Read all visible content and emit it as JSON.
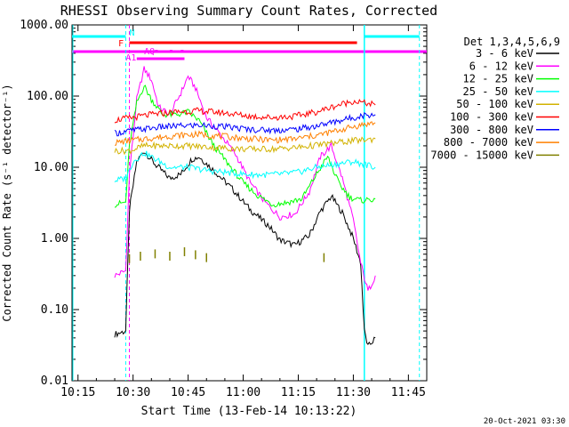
{
  "chart_data": {
    "type": "line",
    "title": "RHESSI Observing Summary Count Rates, Corrected",
    "xlabel": "Start Time (13-Feb-14 10:13:22)",
    "ylabel": "Corrected Count Rate (s⁻¹ detector⁻¹)",
    "x_ticks": [
      "10:15",
      "10:30",
      "10:45",
      "11:00",
      "11:15",
      "11:30",
      "11:45"
    ],
    "y_ticks": [
      "1000.00",
      "100.00",
      "10.00",
      "1.00",
      "0.10",
      "0.01"
    ],
    "y_scale": "log",
    "xlim": [
      "10:13:22",
      "11:50:00"
    ],
    "ylim": [
      0.01,
      1000
    ],
    "legend_title": "Det 1,3,4,5,6,9",
    "legend_position": "outside-right",
    "footer": "20-Oct-2021 03:30",
    "flags": {
      "N_label": "N",
      "F_label": "F",
      "AQ_label": "AQ",
      "A1_label": "A1"
    },
    "series": [
      {
        "name": "3 - 6 keV",
        "color": "#000000",
        "points": [
          [
            "10:25",
            0.045
          ],
          [
            "10:28",
            0.05
          ],
          [
            "10:29",
            2.5
          ],
          [
            "10:31",
            12
          ],
          [
            "10:33",
            17
          ],
          [
            "10:36",
            11
          ],
          [
            "10:40",
            7
          ],
          [
            "10:43",
            8
          ],
          [
            "10:46",
            13
          ],
          [
            "10:48",
            14
          ],
          [
            "10:52",
            9
          ],
          [
            "10:57",
            5
          ],
          [
            "11:02",
            2.5
          ],
          [
            "11:07",
            1.5
          ],
          [
            "11:10",
            0.95
          ],
          [
            "11:14",
            0.8
          ],
          [
            "11:18",
            1.1
          ],
          [
            "11:21",
            2.4
          ],
          [
            "11:24",
            3.9
          ],
          [
            "11:27",
            2.3
          ],
          [
            "11:30",
            1.0
          ],
          [
            "11:32",
            0.45
          ],
          [
            "11:33",
            0.05
          ],
          [
            "11:34",
            0.03
          ],
          [
            "11:36",
            0.04
          ]
        ]
      },
      {
        "name": "6 - 12 keV",
        "color": "#ff00ff",
        "points": [
          [
            "10:25",
            0.3
          ],
          [
            "10:28",
            0.35
          ],
          [
            "10:29",
            8
          ],
          [
            "10:31",
            90
          ],
          [
            "10:33",
            240
          ],
          [
            "10:35",
            170
          ],
          [
            "10:37",
            70
          ],
          [
            "10:40",
            55
          ],
          [
            "10:43",
            110
          ],
          [
            "10:45",
            190
          ],
          [
            "10:47",
            130
          ],
          [
            "10:50",
            50
          ],
          [
            "10:54",
            28
          ],
          [
            "10:58",
            15
          ],
          [
            "11:02",
            6
          ],
          [
            "11:06",
            3.2
          ],
          [
            "11:10",
            2.0
          ],
          [
            "11:14",
            2.2
          ],
          [
            "11:18",
            4.5
          ],
          [
            "11:21",
            14
          ],
          [
            "11:24",
            20
          ],
          [
            "11:27",
            7
          ],
          [
            "11:30",
            1.8
          ],
          [
            "11:32",
            0.45
          ],
          [
            "11:34",
            0.18
          ],
          [
            "11:36",
            0.3
          ]
        ]
      },
      {
        "name": "12 - 25 keV",
        "color": "#00ff00",
        "points": [
          [
            "10:25",
            3
          ],
          [
            "10:28",
            3.2
          ],
          [
            "10:29",
            20
          ],
          [
            "10:31",
            80
          ],
          [
            "10:33",
            140
          ],
          [
            "10:35",
            90
          ],
          [
            "10:38",
            55
          ],
          [
            "10:42",
            55
          ],
          [
            "10:45",
            60
          ],
          [
            "10:48",
            45
          ],
          [
            "10:52",
            20
          ],
          [
            "10:56",
            11
          ],
          [
            "11:00",
            6
          ],
          [
            "11:04",
            4
          ],
          [
            "11:08",
            3
          ],
          [
            "11:12",
            3.2
          ],
          [
            "11:16",
            3.6
          ],
          [
            "11:20",
            8
          ],
          [
            "11:23",
            14
          ],
          [
            "11:26",
            6
          ],
          [
            "11:29",
            3.8
          ],
          [
            "11:32",
            3.4
          ],
          [
            "11:36",
            3.6
          ]
        ]
      },
      {
        "name": "25 - 50 keV",
        "color": "#00ffff",
        "points": [
          [
            "10:25",
            6.5
          ],
          [
            "10:28",
            7
          ],
          [
            "10:30",
            12
          ],
          [
            "10:33",
            16
          ],
          [
            "10:36",
            13
          ],
          [
            "10:40",
            10
          ],
          [
            "10:45",
            10
          ],
          [
            "10:50",
            9
          ],
          [
            "10:55",
            8.5
          ],
          [
            "11:00",
            8
          ],
          [
            "11:05",
            7.8
          ],
          [
            "11:10",
            8
          ],
          [
            "11:15",
            8.5
          ],
          [
            "11:20",
            10
          ],
          [
            "11:25",
            11
          ],
          [
            "11:30",
            12
          ],
          [
            "11:33",
            11
          ],
          [
            "11:36",
            10
          ]
        ]
      },
      {
        "name": "50 - 100 keV",
        "color": "#d2b200",
        "points": [
          [
            "10:25",
            17
          ],
          [
            "10:29",
            17
          ],
          [
            "10:33",
            20
          ],
          [
            "10:38",
            20
          ],
          [
            "10:45",
            20
          ],
          [
            "10:52",
            19
          ],
          [
            "11:00",
            18
          ],
          [
            "11:08",
            18
          ],
          [
            "11:15",
            19
          ],
          [
            "11:22",
            21
          ],
          [
            "11:28",
            23
          ],
          [
            "11:32",
            24
          ],
          [
            "11:36",
            25
          ]
        ]
      },
      {
        "name": "100 - 300 keV",
        "color": "#ff0000",
        "points": [
          [
            "10:25",
            46
          ],
          [
            "10:30",
            50
          ],
          [
            "10:35",
            55
          ],
          [
            "10:42",
            60
          ],
          [
            "10:48",
            62
          ],
          [
            "10:55",
            58
          ],
          [
            "11:02",
            52
          ],
          [
            "11:08",
            50
          ],
          [
            "11:14",
            52
          ],
          [
            "11:20",
            60
          ],
          [
            "11:26",
            75
          ],
          [
            "11:30",
            85
          ],
          [
            "11:33",
            80
          ],
          [
            "11:36",
            75
          ]
        ]
      },
      {
        "name": "300 - 800 keV",
        "color": "#0000ff",
        "points": [
          [
            "10:25",
            30
          ],
          [
            "10:30",
            33
          ],
          [
            "10:36",
            36
          ],
          [
            "10:42",
            38
          ],
          [
            "10:48",
            39
          ],
          [
            "10:55",
            37
          ],
          [
            "11:02",
            34
          ],
          [
            "11:08",
            33
          ],
          [
            "11:14",
            34
          ],
          [
            "11:20",
            38
          ],
          [
            "11:26",
            45
          ],
          [
            "11:30",
            50
          ],
          [
            "11:33",
            54
          ],
          [
            "11:36",
            55
          ]
        ]
      },
      {
        "name": "800 - 7000 keV",
        "color": "#ff8000",
        "points": [
          [
            "10:25",
            22
          ],
          [
            "10:30",
            24
          ],
          [
            "10:36",
            26
          ],
          [
            "10:42",
            28
          ],
          [
            "10:48",
            29
          ],
          [
            "10:55",
            27
          ],
          [
            "11:02",
            25
          ],
          [
            "11:08",
            24
          ],
          [
            "11:14",
            25
          ],
          [
            "11:20",
            28
          ],
          [
            "11:26",
            33
          ],
          [
            "11:30",
            37
          ],
          [
            "11:33",
            40
          ],
          [
            "11:36",
            42
          ]
        ]
      },
      {
        "name": "7000 - 15000 keV",
        "color": "#808000",
        "points": [
          [
            "10:29",
            0.6
          ],
          [
            "10:32",
            0.65
          ],
          [
            "10:36",
            0.7
          ],
          [
            "10:40",
            0.65
          ],
          [
            "10:44",
            0.75
          ],
          [
            "10:47",
            0.68
          ],
          [
            "10:50",
            0.62
          ],
          [
            "11:22",
            0.62
          ]
        ]
      }
    ]
  }
}
